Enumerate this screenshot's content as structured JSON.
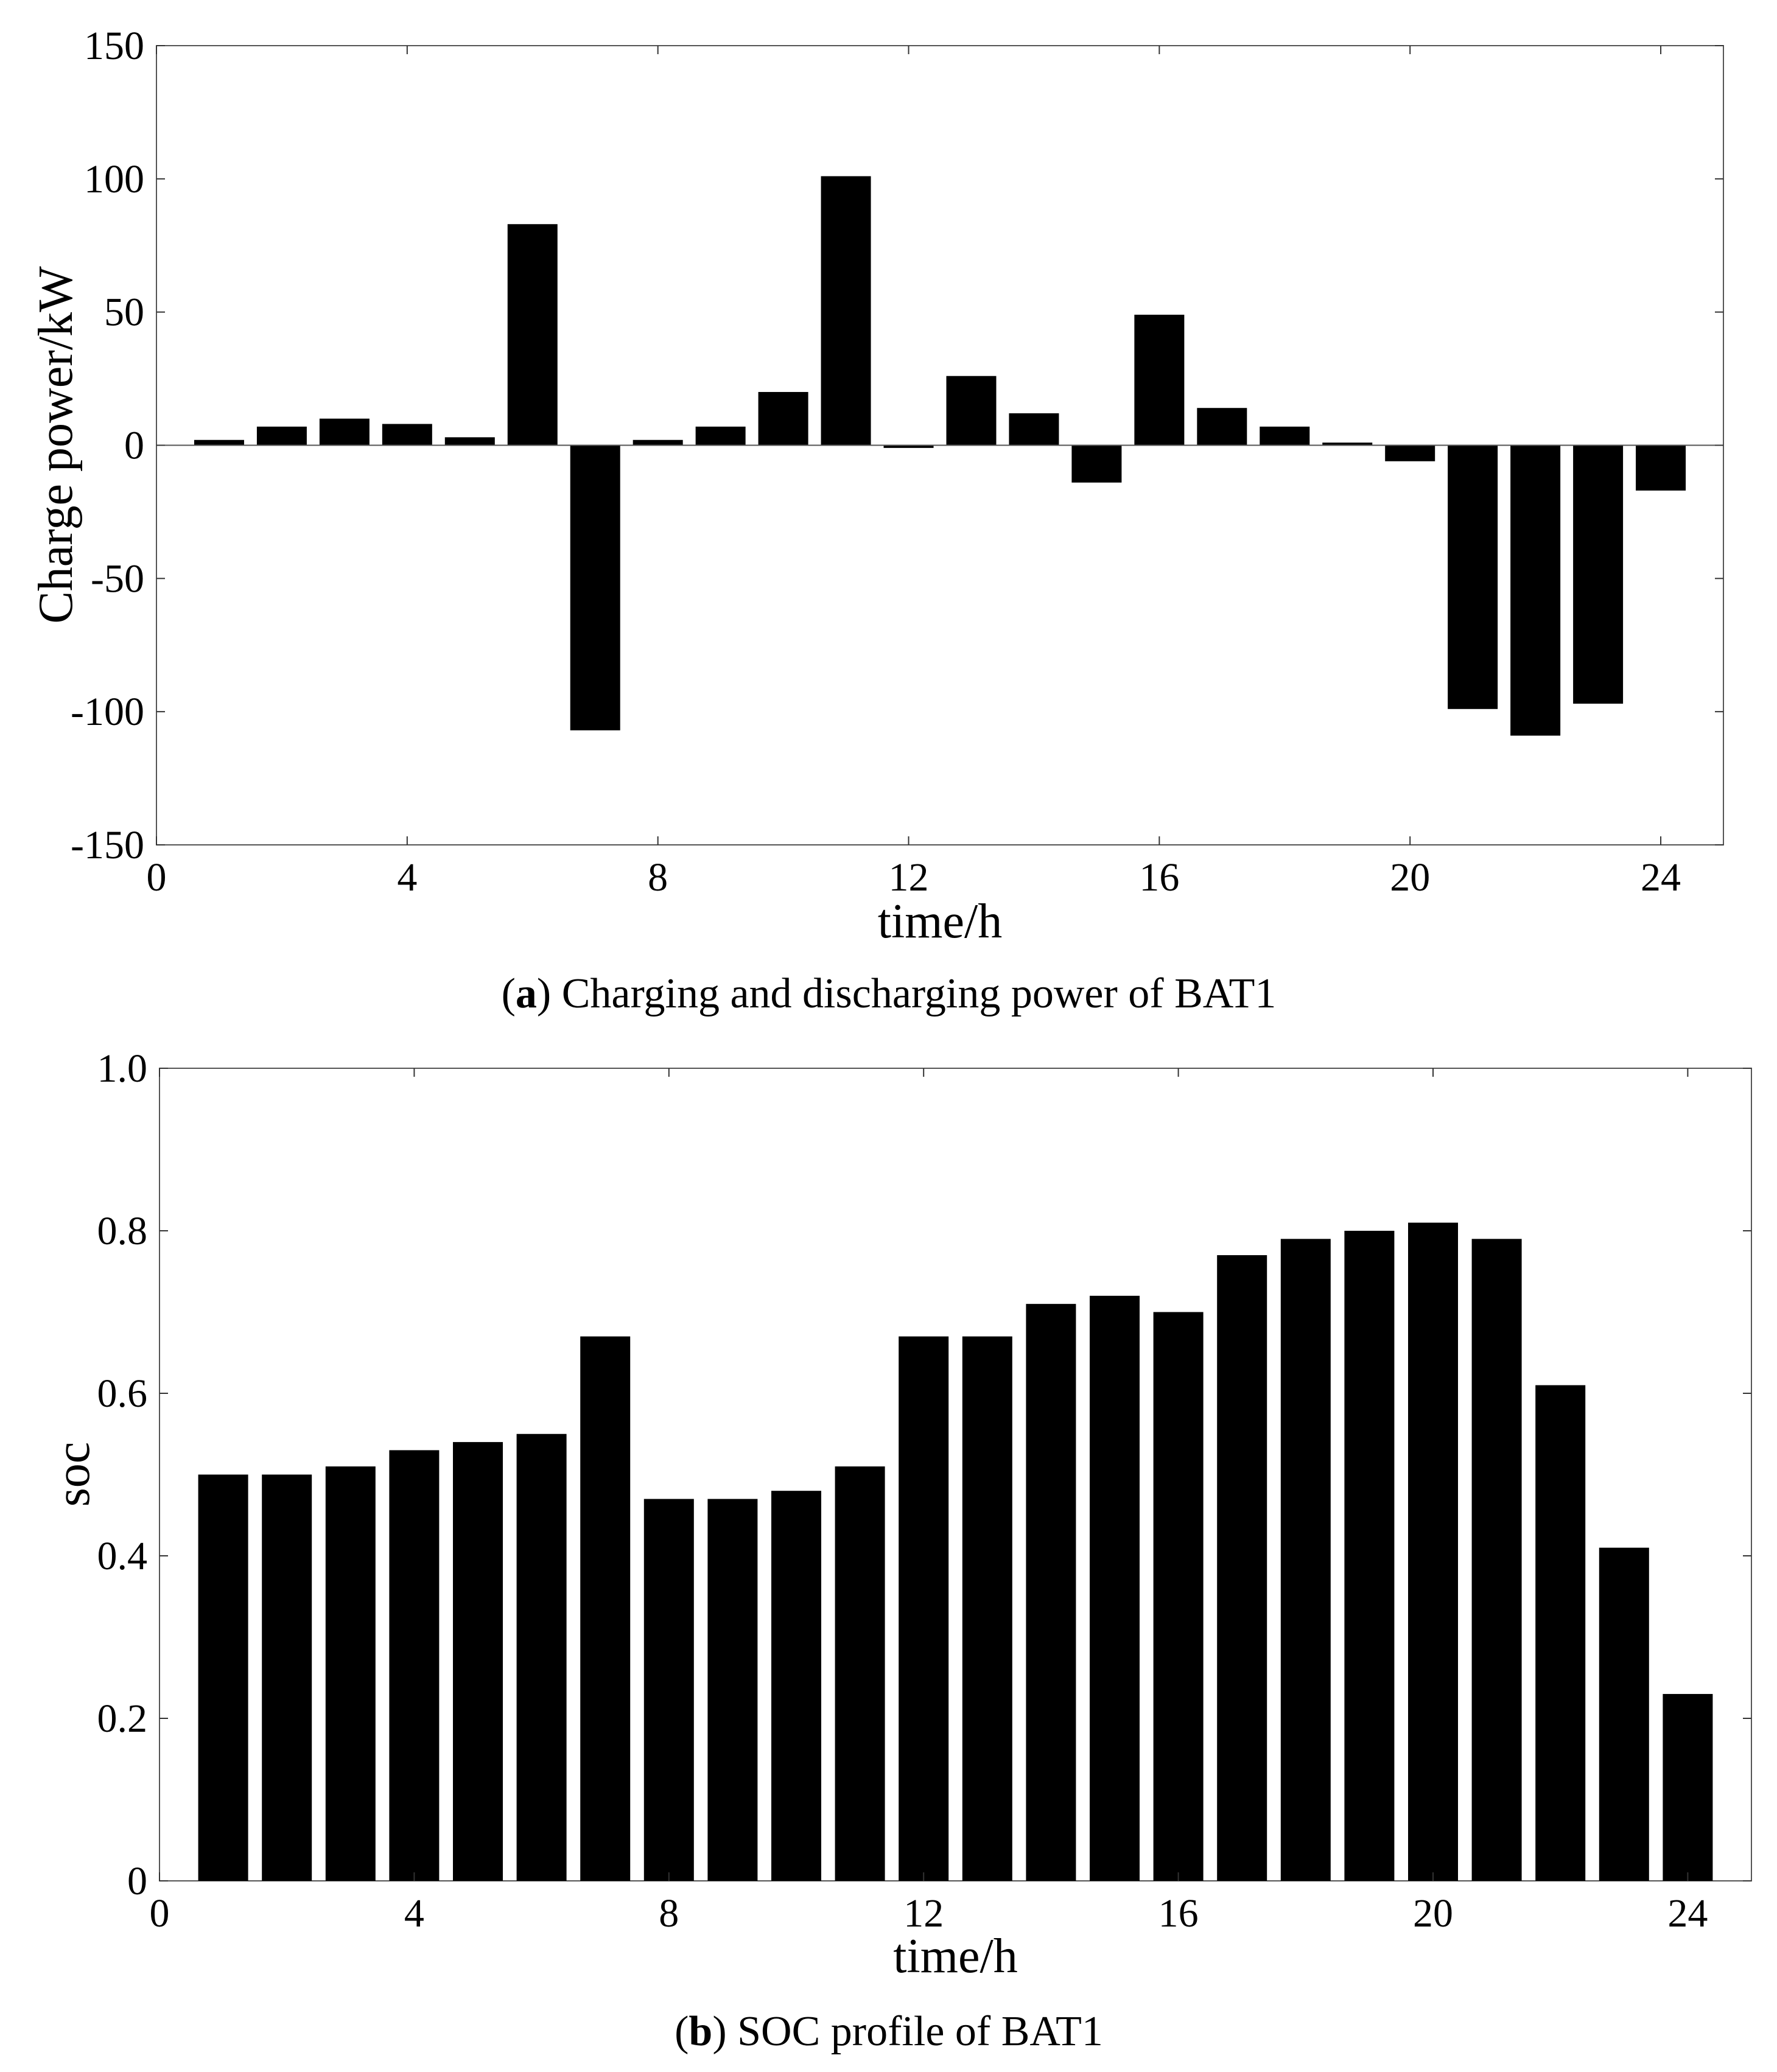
{
  "chart_data": [
    {
      "type": "bar",
      "title": "",
      "caption": {
        "prefix": "(",
        "letter": "a",
        "text": ") Charging and discharging power of BAT1"
      },
      "xlabel": "time/h",
      "ylabel": "Charge power/kW",
      "xlim": [
        0,
        25
      ],
      "ylim": [
        -150,
        150
      ],
      "xticks": [
        "0",
        "4",
        "8",
        "12",
        "16",
        "20",
        "24"
      ],
      "xtick_values": [
        0,
        4,
        8,
        12,
        16,
        20,
        24
      ],
      "yticks": [
        "150",
        "100",
        "50",
        "0",
        "-50",
        "-100",
        "-150"
      ],
      "ytick_values": [
        150,
        100,
        50,
        0,
        -50,
        -100,
        -150
      ],
      "x": [
        1,
        2,
        3,
        4,
        5,
        6,
        7,
        8,
        9,
        10,
        11,
        12,
        13,
        14,
        15,
        16,
        17,
        18,
        19,
        20,
        21,
        22,
        23,
        24
      ],
      "values": [
        2,
        7,
        10,
        8,
        3,
        83,
        -107,
        2,
        7,
        20,
        101,
        -1,
        26,
        12,
        -14,
        49,
        14,
        7,
        1,
        -6,
        -99,
        -109,
        -97,
        -17
      ],
      "bar_color": "#000000"
    },
    {
      "type": "bar",
      "title": "",
      "caption": {
        "prefix": "(",
        "letter": "b",
        "text": ") SOC profile of BAT1"
      },
      "xlabel": "time/h",
      "ylabel": "soc",
      "xlim": [
        0,
        25
      ],
      "ylim": [
        0,
        1.0
      ],
      "xticks": [
        "0",
        "4",
        "8",
        "12",
        "16",
        "20",
        "24"
      ],
      "xtick_values": [
        0,
        4,
        8,
        12,
        16,
        20,
        24
      ],
      "yticks": [
        "1.0",
        "0.8",
        "0.6",
        "0.4",
        "0.2",
        "0"
      ],
      "ytick_values": [
        1.0,
        0.8,
        0.6,
        0.4,
        0.2,
        0
      ],
      "x": [
        1,
        2,
        3,
        4,
        5,
        6,
        7,
        8,
        9,
        10,
        11,
        12,
        13,
        14,
        15,
        16,
        17,
        18,
        19,
        20,
        21,
        22,
        23,
        24
      ],
      "values": [
        0.5,
        0.5,
        0.51,
        0.53,
        0.54,
        0.55,
        0.67,
        0.47,
        0.47,
        0.48,
        0.51,
        0.67,
        0.67,
        0.71,
        0.72,
        0.7,
        0.77,
        0.79,
        0.8,
        0.81,
        0.79,
        0.61,
        0.41,
        0.23
      ],
      "bar_color": "#000000"
    }
  ]
}
